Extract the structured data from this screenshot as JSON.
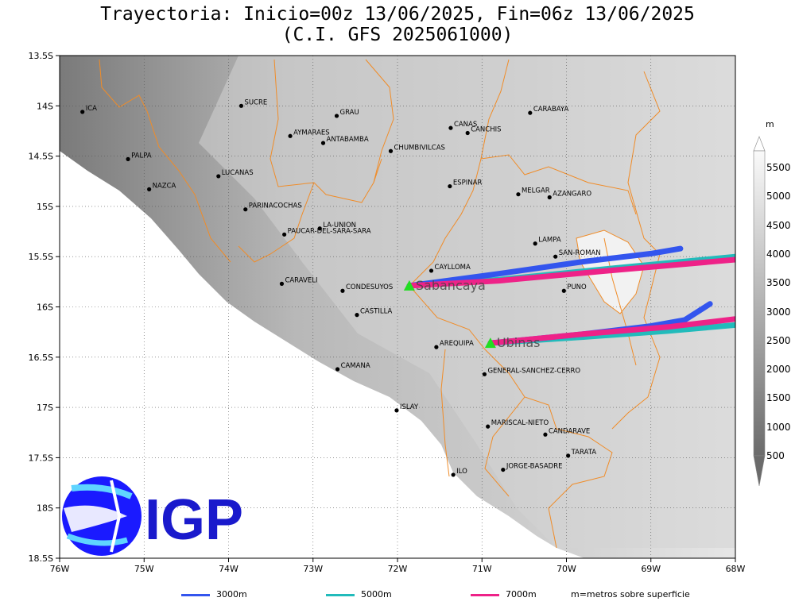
{
  "title": {
    "line1": "Trayectoria: Inicio=00z 13/06/2025, Fin=06z 13/06/2025",
    "line2": "(C.I. GFS 2025061000)"
  },
  "map": {
    "lon_range": [
      -76,
      -68
    ],
    "lat_range": [
      -18.5,
      -13.5
    ],
    "x_ticks": [
      "76W",
      "75W",
      "74W",
      "73W",
      "72W",
      "71W",
      "70W",
      "69W",
      "68W"
    ],
    "y_ticks": [
      "13.5S",
      "14S",
      "14.5S",
      "15S",
      "15.5S",
      "16S",
      "16.5S",
      "17S",
      "17.5S",
      "18S",
      "18.5S"
    ],
    "colors": {
      "border": "#f08c28",
      "ocean": "#ffffff",
      "traj_3000": "#3355ee",
      "traj_5000": "#22bbbb",
      "traj_7000": "#ee2288",
      "volcano": "#22dd22"
    }
  },
  "cities": [
    {
      "name": "ICA",
      "lon": -75.73,
      "lat": -14.06
    },
    {
      "name": "SUCRE",
      "lon": -73.85,
      "lat": -14.0
    },
    {
      "name": "GRAU",
      "lon": -72.72,
      "lat": -14.1
    },
    {
      "name": "AYMARAES",
      "lon": -73.27,
      "lat": -14.3
    },
    {
      "name": "ANTABAMBA",
      "lon": -72.88,
      "lat": -14.37
    },
    {
      "name": "CANAS",
      "lon": -71.37,
      "lat": -14.22
    },
    {
      "name": "CANCHIS",
      "lon": -71.17,
      "lat": -14.27
    },
    {
      "name": "CARABAYA",
      "lon": -70.43,
      "lat": -14.07
    },
    {
      "name": "CHUMBIVILCAS",
      "lon": -72.08,
      "lat": -14.45
    },
    {
      "name": "PALPA",
      "lon": -75.19,
      "lat": -14.53
    },
    {
      "name": "LUCANAS",
      "lon": -74.12,
      "lat": -14.7
    },
    {
      "name": "NAZCA",
      "lon": -74.94,
      "lat": -14.83
    },
    {
      "name": "ESPINAR",
      "lon": -71.38,
      "lat": -14.8
    },
    {
      "name": "MELGAR",
      "lon": -70.57,
      "lat": -14.88
    },
    {
      "name": "AZANGARO",
      "lon": -70.2,
      "lat": -14.91
    },
    {
      "name": "PARINACOCHAS",
      "lon": -73.8,
      "lat": -15.03
    },
    {
      "name": "LA-UNION",
      "lon": -72.92,
      "lat": -15.22
    },
    {
      "name": "PAUCAR-DEL-SARA-SARA",
      "lon": -73.34,
      "lat": -15.28
    },
    {
      "name": "LAMPA",
      "lon": -70.37,
      "lat": -15.37
    },
    {
      "name": "SAN-ROMAN",
      "lon": -70.13,
      "lat": -15.5
    },
    {
      "name": "CAYLLOMA",
      "lon": -71.6,
      "lat": -15.64
    },
    {
      "name": "CARAVELI",
      "lon": -73.37,
      "lat": -15.77
    },
    {
      "name": "CONDESUYOS",
      "lon": -72.65,
      "lat": -15.84
    },
    {
      "name": "PUNO",
      "lon": -70.03,
      "lat": -15.84
    },
    {
      "name": "CASTILLA",
      "lon": -72.48,
      "lat": -16.08
    },
    {
      "name": "AREQUIPA",
      "lon": -71.54,
      "lat": -16.4
    },
    {
      "name": "CAMANA",
      "lon": -72.71,
      "lat": -16.62
    },
    {
      "name": "GENERAL-SANCHEZ-CERRO",
      "lon": -70.97,
      "lat": -16.67
    },
    {
      "name": "ISLAY",
      "lon": -72.01,
      "lat": -17.03
    },
    {
      "name": "MARISCAL-NIETO",
      "lon": -70.93,
      "lat": -17.19
    },
    {
      "name": "CANDARAVE",
      "lon": -70.25,
      "lat": -17.27
    },
    {
      "name": "TARATA",
      "lon": -69.98,
      "lat": -17.48
    },
    {
      "name": "JORGE-BASADRE",
      "lon": -70.75,
      "lat": -17.62
    },
    {
      "name": "ILO",
      "lon": -71.34,
      "lat": -17.67
    }
  ],
  "volcanoes": [
    {
      "name": "Sabancaya",
      "lon": -71.86,
      "lat": -15.79
    },
    {
      "name": "Ubinas",
      "lon": -70.9,
      "lat": -16.36
    }
  ],
  "trajectories": [
    {
      "from": "Sabancaya",
      "height": "3000m",
      "points": [
        [
          -71.86,
          -15.79
        ],
        [
          -70.8,
          -15.67
        ],
        [
          -69.8,
          -15.55
        ],
        [
          -69.0,
          -15.47
        ],
        [
          -68.65,
          -15.42
        ]
      ]
    },
    {
      "from": "Sabancaya",
      "height": "5000m",
      "points": [
        [
          -71.86,
          -15.79
        ],
        [
          -70.8,
          -15.73
        ],
        [
          -69.5,
          -15.62
        ],
        [
          -68.0,
          -15.5
        ]
      ]
    },
    {
      "from": "Sabancaya",
      "height": "7000m",
      "points": [
        [
          -71.86,
          -15.79
        ],
        [
          -70.8,
          -15.74
        ],
        [
          -69.5,
          -15.64
        ],
        [
          -68.0,
          -15.53
        ]
      ]
    },
    {
      "from": "Ubinas",
      "height": "3000m",
      "points": [
        [
          -70.9,
          -16.36
        ],
        [
          -69.8,
          -16.27
        ],
        [
          -69.0,
          -16.19
        ],
        [
          -68.6,
          -16.13
        ],
        [
          -68.3,
          -15.97
        ]
      ]
    },
    {
      "from": "Ubinas",
      "height": "5000m",
      "points": [
        [
          -70.9,
          -16.36
        ],
        [
          -69.8,
          -16.3
        ],
        [
          -68.8,
          -16.24
        ],
        [
          -68.0,
          -16.18
        ]
      ]
    },
    {
      "from": "Ubinas",
      "height": "7000m",
      "points": [
        [
          -70.9,
          -16.36
        ],
        [
          -69.8,
          -16.27
        ],
        [
          -68.8,
          -16.2
        ],
        [
          -68.0,
          -16.12
        ]
      ]
    }
  ],
  "colorbar": {
    "unit": "m",
    "labels": [
      "5500",
      "5000",
      "4500",
      "4000",
      "3500",
      "3000",
      "2500",
      "2000",
      "1500",
      "1000",
      "500"
    ]
  },
  "legend": {
    "items": [
      {
        "label": "3000m",
        "color": "#3355ee"
      },
      {
        "label": "5000m",
        "color": "#22bbbb"
      },
      {
        "label": "7000m",
        "color": "#ee2288"
      }
    ],
    "note": "m=metros sobre superficie"
  },
  "logo": {
    "text": "IGP"
  }
}
